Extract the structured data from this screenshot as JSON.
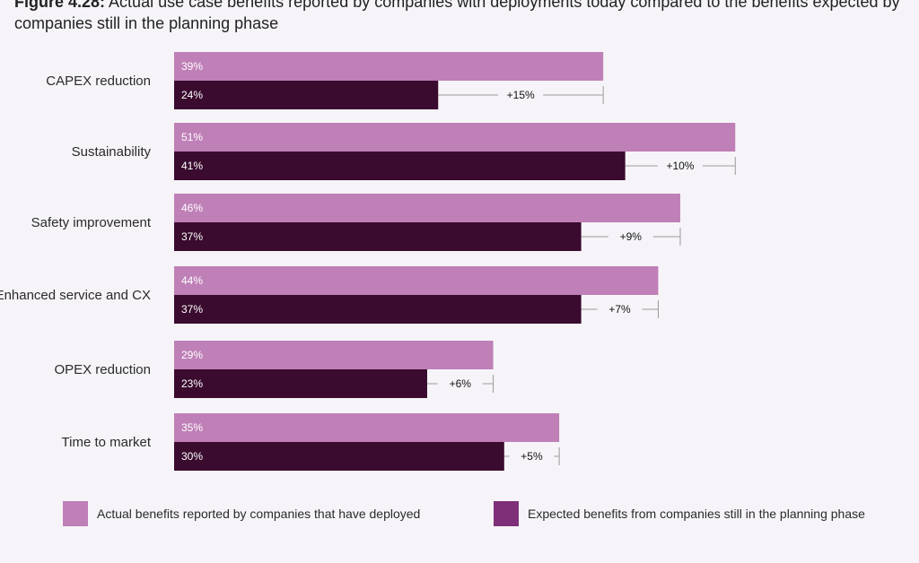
{
  "header": {
    "figure_label": "Figure 4.28:",
    "title": "Actual use case benefits reported by companies with deployments today compared to the benefits expected by companies still in the planning phase"
  },
  "colors": {
    "actual": "#bf7fb7",
    "expected": "#3a0b2e",
    "legend_expected": "#7e2f78",
    "bracket": "#9a9a9a",
    "background": "#f6f4f8"
  },
  "chart_data": {
    "type": "bar",
    "orientation": "horizontal",
    "categories": [
      "CAPEX reduction",
      "Sustainability",
      "Safety improvement",
      "Enhanced service and CX",
      "OPEX reduction",
      "Time to market"
    ],
    "series": [
      {
        "name": "Actual benefits reported by companies that have deployed",
        "values": [
          39,
          51,
          46,
          44,
          29,
          35
        ],
        "labels": [
          "39%",
          "51%",
          "46%",
          "44%",
          "29%",
          "35%"
        ]
      },
      {
        "name": "Expected benefits from companies still in the planning phase",
        "values": [
          24,
          41,
          37,
          37,
          23,
          30
        ],
        "labels": [
          "24%",
          "41%",
          "37%",
          "37%",
          "23%",
          "30%"
        ]
      }
    ],
    "differences": [
      "+15%",
      "+10%",
      "+9%",
      "+7%",
      "+6%",
      "+5%"
    ],
    "xlim": [
      0,
      51
    ],
    "grid": false,
    "legend_position": "bottom"
  },
  "legend": {
    "items": [
      {
        "label": "Actual benefits reported by companies that have deployed"
      },
      {
        "label": "Expected benefits from companies still in the planning phase"
      }
    ]
  }
}
